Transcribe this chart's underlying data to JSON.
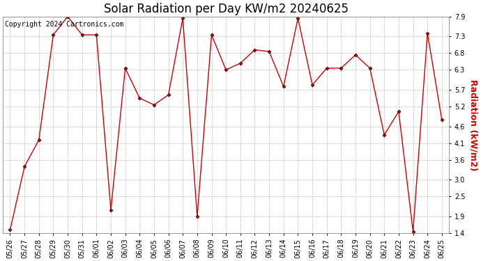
{
  "title": "Solar Radiation per Day KW/m2 20240625",
  "copyright": "Copyright 2024 Cartronics.com",
  "ylabel": "Radiation (kW/m2)",
  "dates": [
    "05/26",
    "05/27",
    "05/28",
    "05/29",
    "05/30",
    "05/31",
    "06/01",
    "06/02",
    "06/03",
    "06/04",
    "06/05",
    "06/06",
    "06/07",
    "06/08",
    "06/09",
    "06/10",
    "06/11",
    "06/12",
    "06/13",
    "06/14",
    "06/15",
    "06/16",
    "06/17",
    "06/18",
    "06/19",
    "06/20",
    "06/21",
    "06/22",
    "06/23",
    "06/24",
    "06/25"
  ],
  "values": [
    1.5,
    3.4,
    4.2,
    7.35,
    7.9,
    7.35,
    7.35,
    2.1,
    6.35,
    5.45,
    5.25,
    5.55,
    7.85,
    1.9,
    7.35,
    6.3,
    6.5,
    6.9,
    6.85,
    5.8,
    7.85,
    5.85,
    6.35,
    6.35,
    6.75,
    6.35,
    4.35,
    5.05,
    1.45,
    7.4,
    4.8
  ],
  "ylim": [
    1.4,
    7.9
  ],
  "yticks": [
    1.4,
    1.9,
    2.5,
    3.0,
    3.6,
    4.1,
    4.6,
    5.2,
    5.7,
    6.3,
    6.8,
    7.3,
    7.9
  ],
  "line_color": "#CC0000",
  "marker": "D",
  "marker_size": 2.5,
  "bg_color": "#ffffff",
  "grid_color": "#bbbbbb",
  "title_color": "#000000",
  "ylabel_color": "#CC0000",
  "copyright_color": "#000000",
  "title_fontsize": 12,
  "tick_fontsize": 7,
  "ylabel_fontsize": 9,
  "copyright_fontsize": 7
}
